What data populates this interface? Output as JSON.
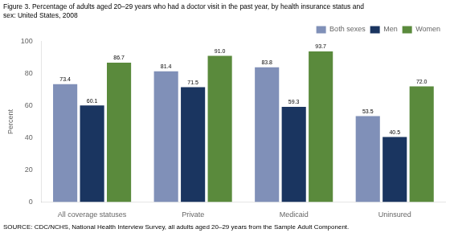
{
  "chart_data": {
    "type": "bar",
    "title": "Figure 3. Percentage of adults aged 20–29 years who had a doctor visit in the past year, by health insurance status and\nsex: United States, 2008",
    "annotations": [
      "SOURCE: CDC/NCHS, National Health Interview Survey, all adults aged 20–29 years from the Sample Adult Component."
    ],
    "categories": [
      "All coverage statuses",
      "Private",
      "Medicaid",
      "Uninsured"
    ],
    "series": [
      {
        "name": "Both sexes",
        "color": "#8090b8",
        "values": [
          73.4,
          81.4,
          83.8,
          53.5
        ],
        "value_labels": [
          "73.4",
          "81.4",
          "83.8",
          "53.5"
        ]
      },
      {
        "name": "Men",
        "color": "#1a3560",
        "values": [
          60.1,
          71.5,
          59.3,
          40.5
        ],
        "value_labels": [
          "60.1",
          "71.5",
          "59.3",
          "40.5"
        ]
      },
      {
        "name": "Women",
        "color": "#5a8a3c",
        "values": [
          86.7,
          91.0,
          93.7,
          72.0
        ],
        "value_labels": [
          "86.7",
          "91.0",
          "93.7",
          "72.0"
        ]
      }
    ],
    "ylabel": "Percent",
    "ylim": [
      0,
      100
    ],
    "yticks": [
      0,
      20,
      40,
      60,
      80,
      100
    ],
    "grid": false,
    "legend": "upper right",
    "data_labels": true
  }
}
